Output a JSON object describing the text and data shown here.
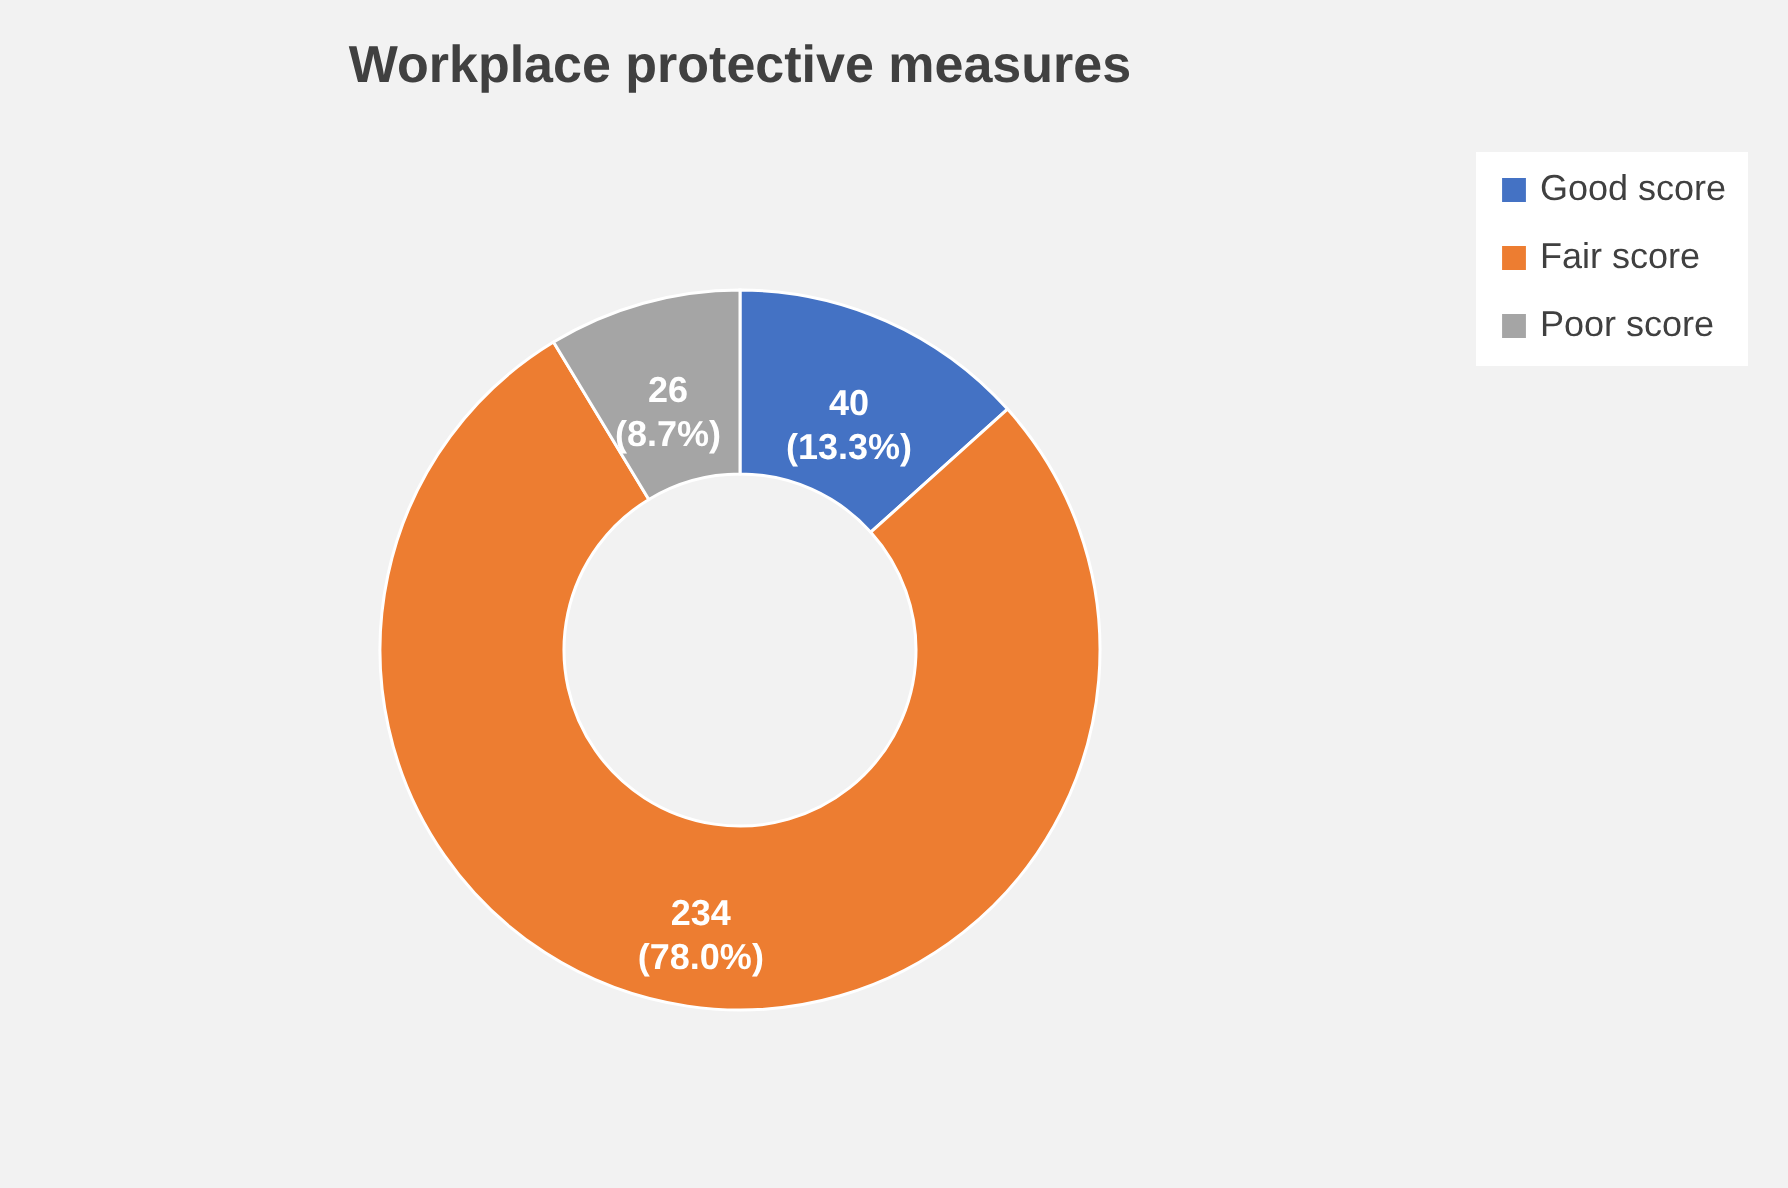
{
  "chart_data": {
    "type": "donut",
    "title": "Workplace protective measures",
    "categories": [
      "Good score",
      "Fair score",
      "Poor score"
    ],
    "values": [
      40,
      234,
      26
    ],
    "colors": [
      "#4472c4",
      "#ed7d31",
      "#a5a5a5"
    ],
    "value_labels": [
      "40 (13.3%)",
      "234 (78.0%)",
      "26 (8.7%)"
    ],
    "legend": "right"
  }
}
